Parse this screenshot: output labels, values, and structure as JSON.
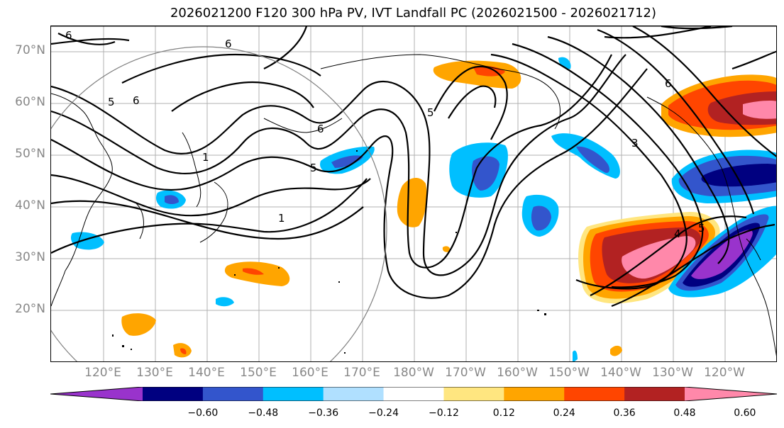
{
  "title": "2026021200 F120 300 hPa PV, IVT Landfall PC (2026021500 - 2026021712)",
  "lat_labels": [
    "70°N",
    "60°N",
    "50°N",
    "40°N",
    "30°N",
    "20°N"
  ],
  "lon_labels": [
    "120°E",
    "130°E",
    "140°E",
    "150°E",
    "160°E",
    "170°E",
    "180°W",
    "170°W",
    "160°W",
    "150°W",
    "140°W",
    "130°W",
    "120°W"
  ],
  "colorbar": {
    "ticks": [
      "−0.60",
      "−0.48",
      "−0.36",
      "−0.24",
      "−0.12",
      "0.12",
      "0.24",
      "0.36",
      "0.48",
      "0.60"
    ],
    "colors": [
      "#9933cc",
      "#000080",
      "#3355cc",
      "#00bfff",
      "#b0e0ff",
      "#ffffff",
      "#ffe680",
      "#ffa500",
      "#ff4500",
      "#b22222",
      "#ff88aa"
    ]
  },
  "contour_labels": {
    "l1": "5",
    "l2": "6",
    "l3": "6",
    "l4": "6",
    "l5": "1",
    "l6": "5",
    "l7": "1",
    "l8": "6",
    "l9": "5",
    "l10": "3",
    "l11": "4",
    "l12": "6",
    "l13": "5"
  }
}
